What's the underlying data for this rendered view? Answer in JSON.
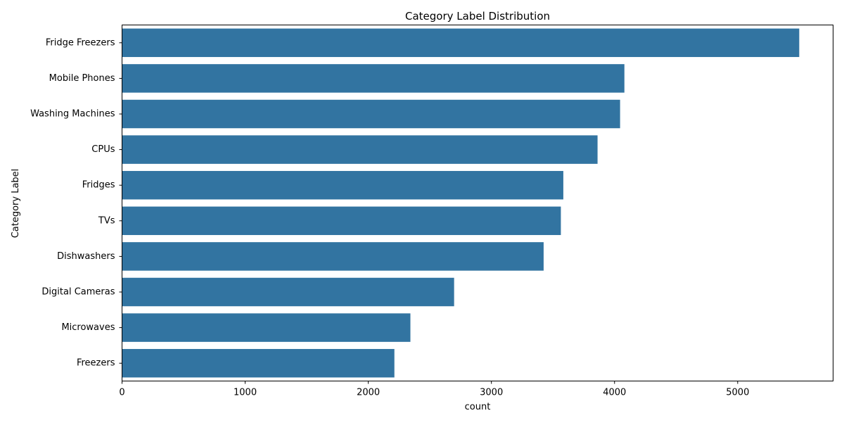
{
  "chart_data": {
    "type": "bar",
    "orientation": "horizontal",
    "title": "Category Label Distribution",
    "xlabel": "count",
    "ylabel": "Category Label",
    "categories": [
      "Fridge Freezers",
      "Mobile Phones",
      "Washing Machines",
      "CPUs",
      "Fridges",
      "TVs",
      "Dishwashers",
      "Digital Cameras",
      "Microwaves",
      "Freezers"
    ],
    "values": [
      5500,
      4080,
      4045,
      3862,
      3584,
      3564,
      3424,
      2697,
      2342,
      2212
    ],
    "xlim": [
      0,
      5775
    ],
    "xticks": [
      0,
      1000,
      2000,
      3000,
      4000,
      5000
    ],
    "grid": false,
    "legend": "none",
    "bar_color": "#3274a1"
  }
}
